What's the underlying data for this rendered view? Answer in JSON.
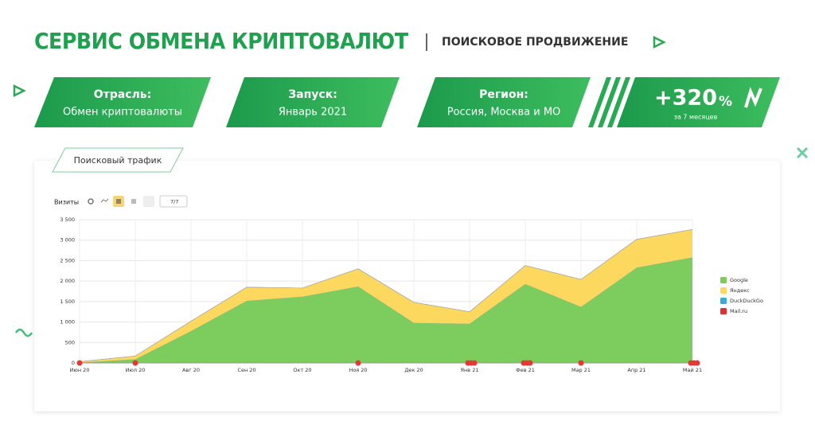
{
  "header": {
    "title": "СЕРВИС ОБМЕНА КРИПТОВАЛЮТ",
    "subtitle": "ПОИСКОВОЕ ПРОДВИЖЕНИЕ"
  },
  "cards": [
    {
      "label": "Отрасль:",
      "value": "Обмен криптовалюты"
    },
    {
      "label": "Запуск:",
      "value": "Январь 2021"
    },
    {
      "label": "Регион:",
      "value": "Россия, Москва и МО"
    }
  ],
  "highlight": {
    "value": "+320",
    "unit": "%",
    "caption": "за 7 месяцев"
  },
  "tab": "Поисковый трафик",
  "toolbar": {
    "metric": "Визиты",
    "filter": "7/7"
  },
  "chart_data": {
    "type": "stacked-area",
    "categories": [
      "Июн 20",
      "Июл 20",
      "Авг 20",
      "Сен 20",
      "Окт 20",
      "Ноя 20",
      "Дек 20",
      "Янв 21",
      "Фев 21",
      "Мар 21",
      "Апр 21",
      "Май 21"
    ],
    "series": [
      {
        "name": "Google",
        "color": "#7dcc5e",
        "values": [
          10,
          90,
          780,
          1520,
          1620,
          1870,
          980,
          960,
          1930,
          1370,
          2330,
          2580
        ]
      },
      {
        "name": "Яндекс",
        "color": "#fdd85e",
        "values": [
          20,
          80,
          240,
          330,
          210,
          430,
          500,
          290,
          450,
          670,
          690,
          680
        ]
      },
      {
        "name": "DuckDuckGo",
        "color": "#3aa9d9",
        "values": [
          0,
          0,
          0,
          0,
          0,
          0,
          0,
          0,
          0,
          0,
          0,
          0
        ]
      },
      {
        "name": "Mail.ru",
        "color": "#e03030",
        "values": [
          0,
          0,
          0,
          0,
          0,
          0,
          0,
          0,
          0,
          0,
          0,
          0
        ]
      }
    ],
    "ylim": [
      0,
      3500
    ],
    "yticks": [
      0,
      500,
      {
        "value": 1000,
        "label": "1 000"
      },
      {
        "value": 1500,
        "label": "1 500"
      },
      {
        "value": 2000,
        "label": "2 000"
      },
      {
        "value": 2500,
        "label": "2 500"
      },
      {
        "value": 3000,
        "label": "3 000"
      },
      {
        "value": 3500,
        "label": "3 500"
      }
    ],
    "grid": true,
    "legend": "right"
  }
}
